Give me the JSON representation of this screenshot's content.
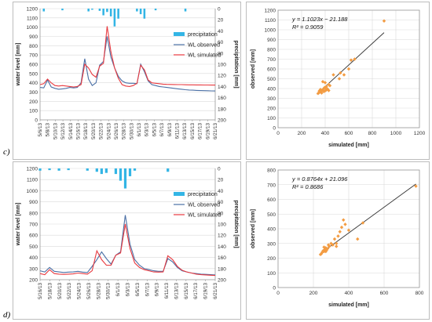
{
  "panels": [
    {
      "label": "c)",
      "dates": [
        "5/6/13",
        "5/8/13",
        "5/10/13",
        "5/12/13",
        "5/14/13",
        "5/16/13",
        "5/18/13",
        "5/20/13",
        "5/22/13",
        "5/24/13",
        "5/26/13",
        "5/28/13",
        "5/30/13",
        "6/1/13",
        "6/3/13",
        "6/5/13",
        "6/7/13",
        "6/9/13",
        "6/11/13",
        "6/13/13",
        "6/15/13",
        "6/17/13",
        "6/19/13",
        "6/21/13"
      ],
      "timeseries": {
        "type": "line+bar",
        "ylabel_left": "water level [mm]",
        "ylabel_right": "precipitation [mm]",
        "yleft_ticks": [
          0,
          100,
          200,
          300,
          400,
          500,
          600,
          700,
          800,
          900,
          1000,
          1100,
          1200
        ],
        "yleft_range": [
          0,
          1200
        ],
        "yright_ticks": [
          0,
          20,
          40,
          60,
          80,
          100,
          120,
          140,
          160,
          180,
          200
        ],
        "yright_range": [
          0,
          200
        ],
        "legend": [
          "precipitation",
          "WL observed",
          "WL simulated"
        ],
        "colors": {
          "precip": "#33b5e5",
          "obs": "#4a6fa5",
          "sim": "#e8393f"
        },
        "x_index": [
          0,
          1,
          2,
          3,
          4,
          5,
          6,
          7,
          8,
          9,
          10,
          11,
          12,
          13,
          14,
          15,
          16,
          17,
          18,
          19,
          20,
          21,
          22,
          23,
          24,
          25,
          26,
          27,
          28,
          29,
          30,
          31,
          32,
          33,
          34,
          35,
          36,
          37,
          38,
          39,
          40,
          41,
          42,
          43,
          44,
          45,
          46,
          47
        ],
        "observed": [
          350,
          345,
          430,
          355,
          340,
          330,
          335,
          340,
          350,
          345,
          350,
          400,
          660,
          440,
          370,
          400,
          590,
          630,
          900,
          680,
          560,
          470,
          420,
          400,
          395,
          395,
          390,
          600,
          520,
          420,
          380,
          370,
          360,
          355,
          350,
          345,
          340,
          335,
          330,
          325,
          322,
          320,
          318,
          316,
          315,
          314,
          313,
          312
        ],
        "simulated": [
          380,
          390,
          440,
          400,
          370,
          365,
          370,
          365,
          360,
          355,
          360,
          380,
          600,
          560,
          490,
          460,
          580,
          610,
          1010,
          740,
          560,
          450,
          380,
          365,
          360,
          370,
          395,
          590,
          540,
          430,
          400,
          395,
          390,
          385,
          383,
          382,
          381,
          380,
          380,
          379,
          378,
          378,
          377,
          377,
          376,
          376,
          375,
          375
        ],
        "precip": [
          {
            "x": 1,
            "v": 5
          },
          {
            "x": 6,
            "v": 3
          },
          {
            "x": 13,
            "v": 5
          },
          {
            "x": 14,
            "v": 2
          },
          {
            "x": 16,
            "v": 4
          },
          {
            "x": 17,
            "v": 12
          },
          {
            "x": 18,
            "v": 6
          },
          {
            "x": 19,
            "v": 14
          },
          {
            "x": 20,
            "v": 32
          },
          {
            "x": 21,
            "v": 18
          },
          {
            "x": 26,
            "v": 5
          },
          {
            "x": 27,
            "v": 10
          },
          {
            "x": 28,
            "v": 18
          },
          {
            "x": 31,
            "v": 3
          },
          {
            "x": 39,
            "v": 5
          }
        ]
      },
      "scatter": {
        "type": "scatter",
        "equation": "y = 1.1023x − 21.188",
        "r2": "R² = 0.9059",
        "xlabel": "simulated [mm]",
        "ylabel": "observed [mm]",
        "xticks": [
          0,
          200,
          400,
          600,
          800,
          1000,
          1200
        ],
        "yticks": [
          0,
          100,
          200,
          300,
          400,
          500,
          600,
          700,
          800,
          900,
          1000,
          1100,
          1200
        ],
        "xlim": [
          0,
          1200
        ],
        "ylim": [
          0,
          1200
        ],
        "fit": {
          "slope": 1.1023,
          "intercept": -21.188,
          "x_from": 330,
          "x_to": 900
        },
        "points": [
          [
            340,
            350
          ],
          [
            350,
            360
          ],
          [
            360,
            370
          ],
          [
            370,
            355
          ],
          [
            375,
            380
          ],
          [
            380,
            390
          ],
          [
            390,
            370
          ],
          [
            395,
            410
          ],
          [
            400,
            400
          ],
          [
            405,
            380
          ],
          [
            410,
            420
          ],
          [
            420,
            395
          ],
          [
            430,
            440
          ],
          [
            440,
            430
          ],
          [
            380,
            470
          ],
          [
            400,
            460
          ],
          [
            520,
            500
          ],
          [
            530,
            560
          ],
          [
            560,
            540
          ],
          [
            600,
            600
          ],
          [
            620,
            690
          ],
          [
            650,
            700
          ],
          [
            900,
            1090
          ],
          [
            470,
            540
          ],
          [
            430,
            380
          ],
          [
            360,
            390
          ],
          [
            350,
            375
          ]
        ]
      }
    },
    {
      "label": "d)",
      "dates": [
        "5/16/13",
        "5/18/13",
        "5/20/13",
        "5/22/13",
        "5/24/13",
        "5/26/13",
        "5/28/13",
        "5/30/13",
        "6/1/13",
        "6/3/13",
        "6/5/13",
        "6/7/13",
        "6/9/13",
        "6/11/13",
        "6/13/13",
        "6/15/13",
        "6/17/13",
        "6/19/13",
        "6/21/13"
      ],
      "timeseries": {
        "type": "line+bar",
        "ylabel_left": "water level [mm]",
        "ylabel_right": "precipitation [mm]",
        "yleft_ticks": [
          200,
          300,
          400,
          500,
          600,
          700,
          800,
          900,
          1000,
          1100,
          1200
        ],
        "yleft_range": [
          200,
          1200
        ],
        "yright_ticks": [
          0,
          20,
          40,
          60,
          80,
          100,
          120,
          140,
          160,
          180,
          200
        ],
        "yright_range": [
          0,
          200
        ],
        "legend": [
          "precipitation",
          "WL observed",
          "WL simulated"
        ],
        "colors": {
          "precip": "#33b5e5",
          "obs": "#4a6fa5",
          "sim": "#e8393f"
        },
        "x_index": [
          0,
          1,
          2,
          3,
          4,
          5,
          6,
          7,
          8,
          9,
          10,
          11,
          12,
          13,
          14,
          15,
          16,
          17,
          18,
          19,
          20,
          21,
          22,
          23,
          24,
          25,
          26,
          27,
          28,
          29,
          30,
          31,
          32,
          33,
          34,
          35,
          36,
          37
        ],
        "observed": [
          280,
          270,
          310,
          275,
          270,
          265,
          268,
          270,
          275,
          268,
          265,
          320,
          380,
          450,
          390,
          340,
          420,
          450,
          780,
          520,
          380,
          330,
          300,
          290,
          280,
          275,
          275,
          390,
          360,
          310,
          280,
          270,
          260,
          255,
          250,
          248,
          245,
          243
        ],
        "simulated": [
          255,
          245,
          290,
          255,
          250,
          248,
          250,
          252,
          260,
          255,
          250,
          280,
          460,
          380,
          330,
          330,
          420,
          440,
          700,
          480,
          350,
          310,
          290,
          280,
          270,
          268,
          270,
          415,
          380,
          320,
          285,
          270,
          260,
          250,
          245,
          243,
          240,
          238
        ],
        "precip": [
          {
            "x": 0,
            "v": 4
          },
          {
            "x": 2,
            "v": 3
          },
          {
            "x": 4,
            "v": 4
          },
          {
            "x": 6,
            "v": 3
          },
          {
            "x": 10,
            "v": 4
          },
          {
            "x": 12,
            "v": 6
          },
          {
            "x": 13,
            "v": 10
          },
          {
            "x": 14,
            "v": 8
          },
          {
            "x": 16,
            "v": 10
          },
          {
            "x": 17,
            "v": 22
          },
          {
            "x": 18,
            "v": 36
          },
          {
            "x": 19,
            "v": 14
          },
          {
            "x": 20,
            "v": 4
          },
          {
            "x": 27,
            "v": 6
          }
        ]
      },
      "scatter": {
        "type": "scatter",
        "equation": "y = 0.8764x + 21.096",
        "r2": "R² = 0.8686",
        "xlabel": "simulated [mm]",
        "ylabel": "observed [mm]",
        "xticks": [
          0,
          200,
          400,
          600,
          800
        ],
        "yticks": [
          0,
          100,
          200,
          300,
          400,
          500,
          600,
          700,
          800
        ],
        "xlim": [
          0,
          800
        ],
        "ylim": [
          0,
          800
        ],
        "fit": {
          "slope": 0.8764,
          "intercept": 21.096,
          "x_from": 240,
          "x_to": 780
        },
        "points": [
          [
            240,
            225
          ],
          [
            245,
            230
          ],
          [
            250,
            240
          ],
          [
            255,
            250
          ],
          [
            260,
            245
          ],
          [
            265,
            260
          ],
          [
            270,
            270
          ],
          [
            275,
            255
          ],
          [
            280,
            265
          ],
          [
            285,
            290
          ],
          [
            290,
            280
          ],
          [
            300,
            300
          ],
          [
            310,
            290
          ],
          [
            320,
            330
          ],
          [
            330,
            280
          ],
          [
            340,
            350
          ],
          [
            350,
            380
          ],
          [
            360,
            410
          ],
          [
            370,
            460
          ],
          [
            380,
            430
          ],
          [
            400,
            390
          ],
          [
            450,
            330
          ],
          [
            480,
            440
          ],
          [
            330,
            300
          ],
          [
            270,
            245
          ],
          [
            260,
            275
          ],
          [
            780,
            690
          ]
        ]
      }
    }
  ]
}
